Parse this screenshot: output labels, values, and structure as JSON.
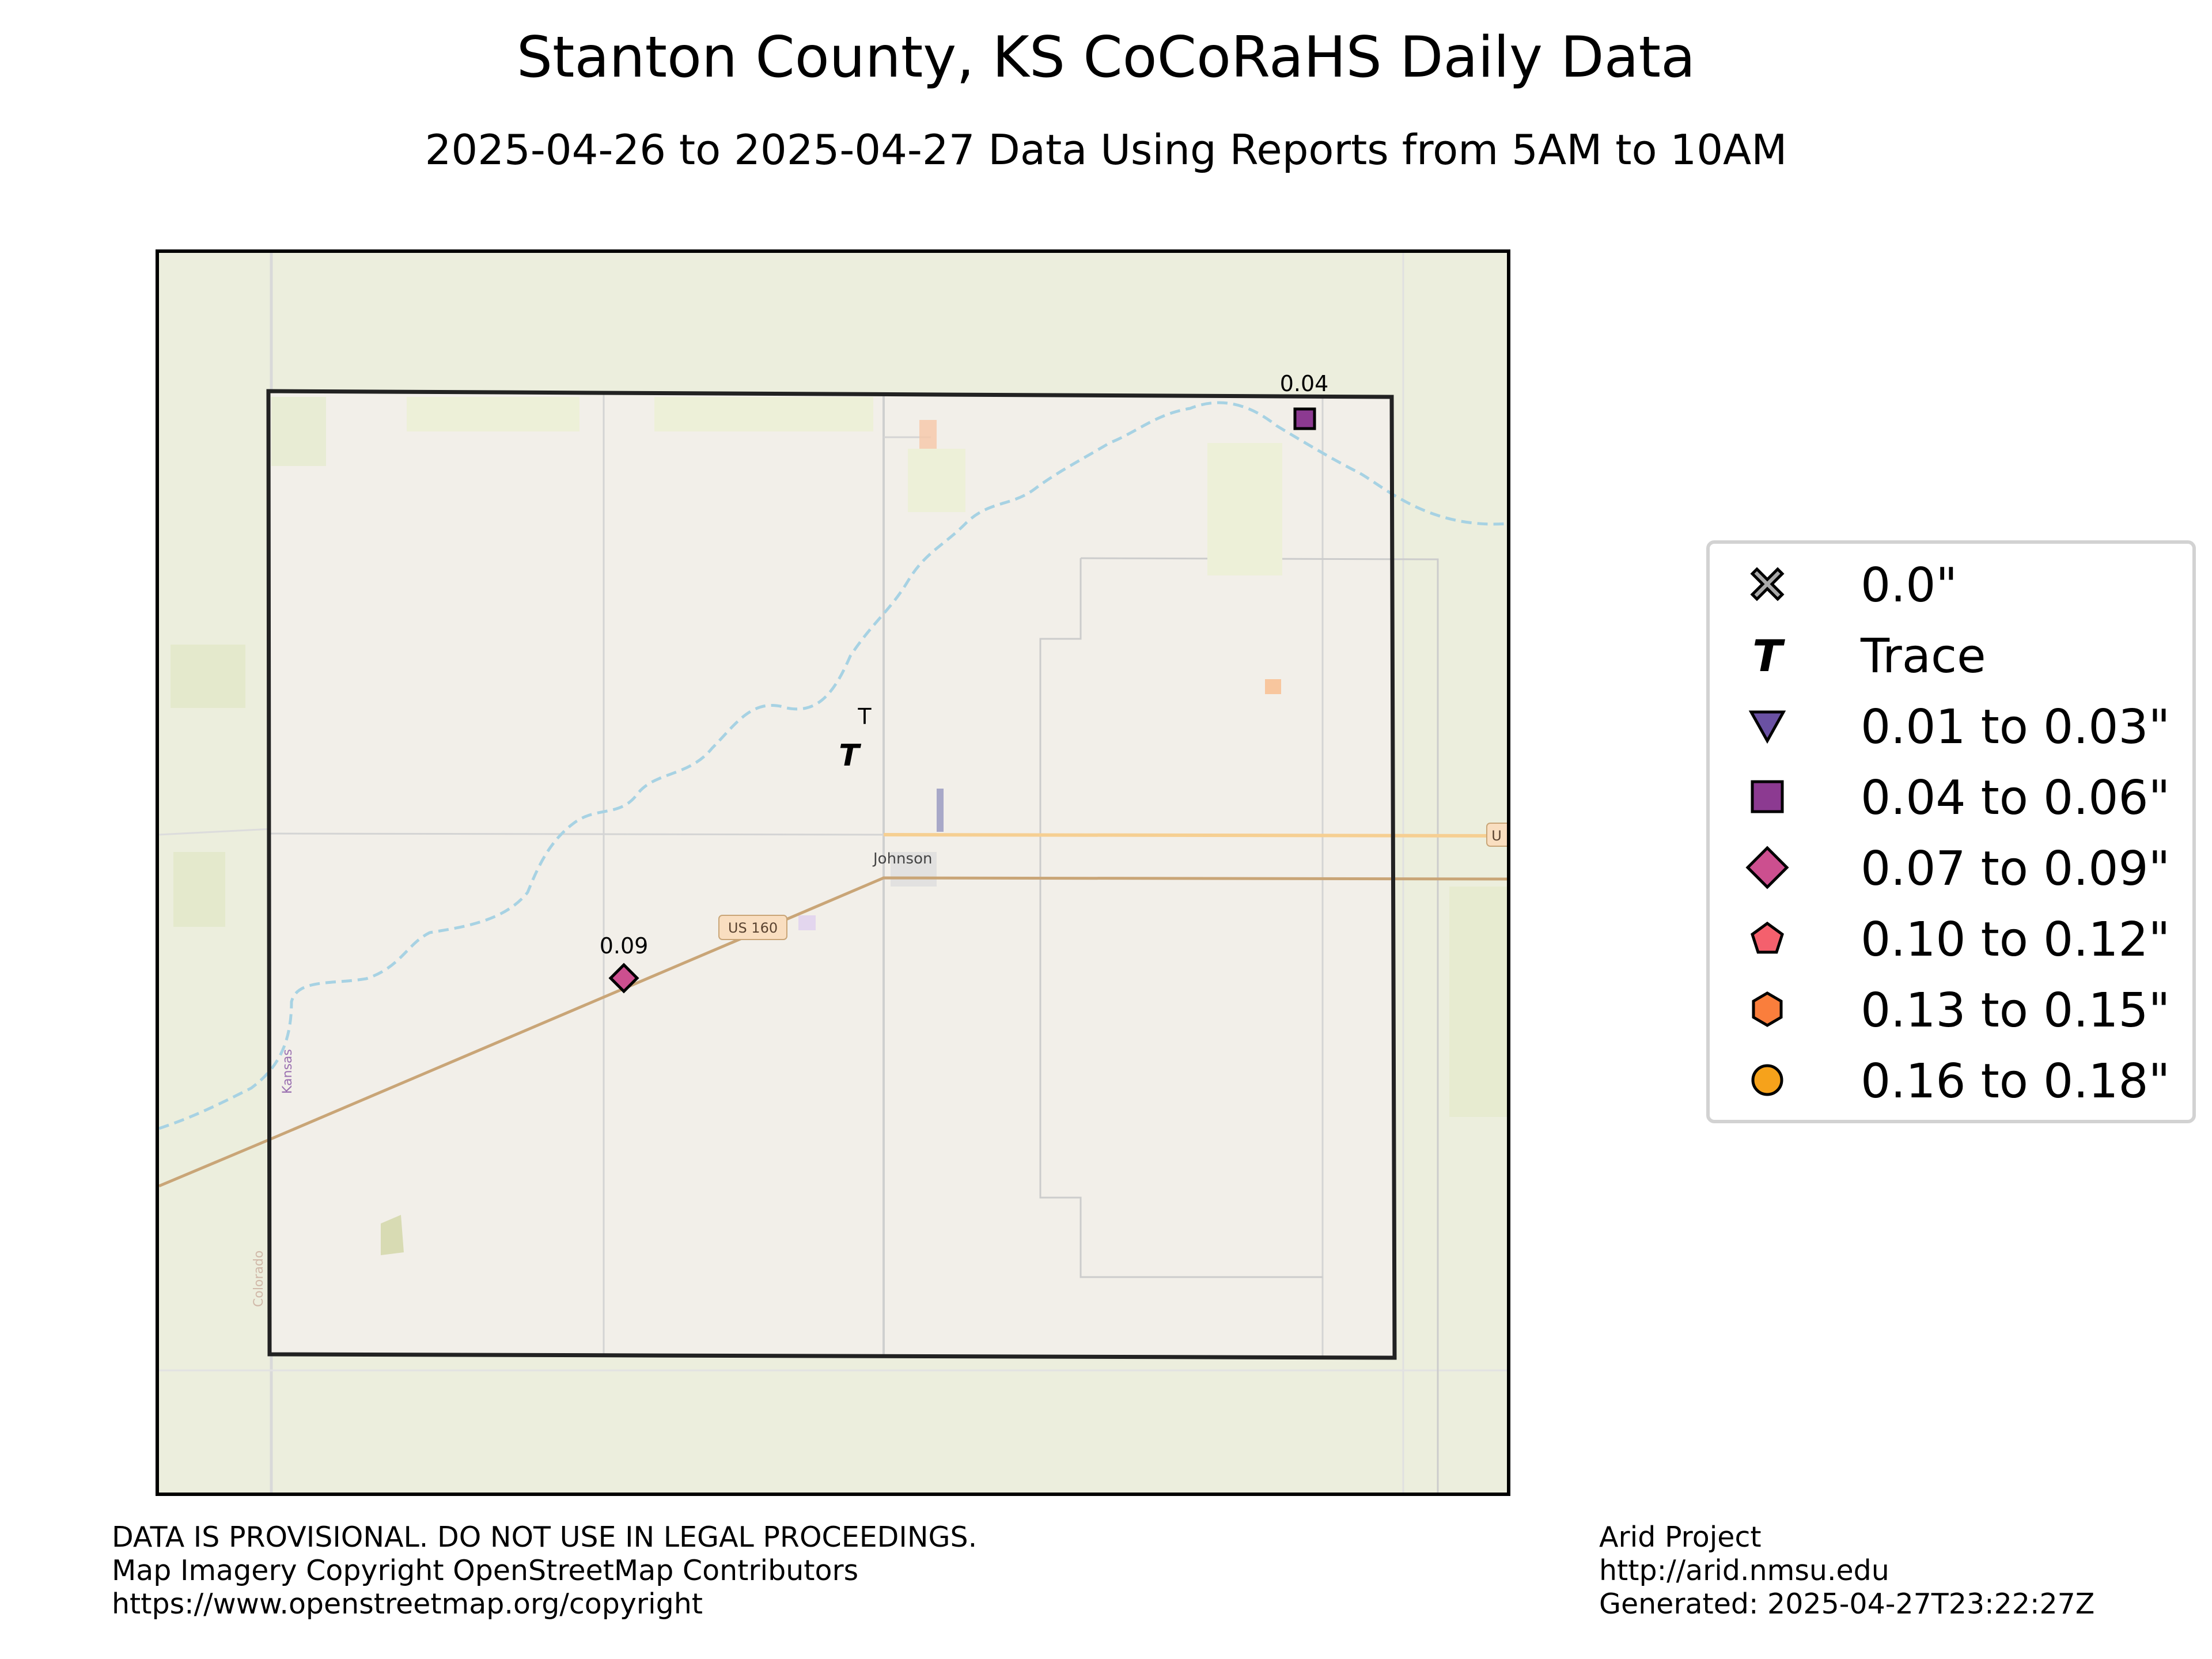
{
  "title": "Stanton County, KS CoCoRaHS Daily Data",
  "subtitle": "2025-04-26 to 2025-04-27 Data Using Reports from 5AM to 10AM",
  "map": {
    "place_label": "Johnson",
    "road_shield": "US 160",
    "state_label": "Kansas",
    "state_label_west": "Colorado",
    "road_shield_east": "U",
    "colors": {
      "background": "#eceedd",
      "county_fill": "#f2efe9",
      "river": "#a7d2e3",
      "highway": "#c9a577",
      "highway_east": "#f6cf92",
      "section_lines": "#cfcfcf"
    },
    "stations": [
      {
        "label": "0.04",
        "category": "0.04 to 0.06\"",
        "symbol": "square"
      },
      {
        "label": "0.09",
        "category": "0.07 to 0.09\"",
        "symbol": "diamond"
      },
      {
        "label": "T",
        "category": "Trace",
        "symbol": "T"
      }
    ]
  },
  "legend": {
    "items": [
      {
        "label": "0.0\"",
        "symbol": "x-cross-icon",
        "color": "#aaaaaa"
      },
      {
        "label": "Trace",
        "symbol": "t-icon",
        "color": "#000000"
      },
      {
        "label": "0.01 to 0.03\"",
        "symbol": "triangle-down-icon",
        "color": "#6a51a3"
      },
      {
        "label": "0.04 to 0.06\"",
        "symbol": "square-icon",
        "color": "#8c3a91"
      },
      {
        "label": "0.07 to 0.09\"",
        "symbol": "diamond-icon",
        "color": "#cc4f8f"
      },
      {
        "label": "0.10 to 0.12\"",
        "symbol": "pentagon-icon",
        "color": "#f4606d"
      },
      {
        "label": "0.13 to 0.15\"",
        "symbol": "hexagon-icon",
        "color": "#fa7e3c"
      },
      {
        "label": "0.16 to 0.18\"",
        "symbol": "circle-icon",
        "color": "#f6a21b"
      }
    ]
  },
  "footer": {
    "disclaimer": "DATA IS PROVISIONAL. DO NOT USE IN LEGAL PROCEEDINGS.",
    "imagery": "Map Imagery Copyright OpenStreetMap Contributors",
    "copyright_url": "https://www.openstreetmap.org/copyright",
    "project": "Arid Project",
    "project_url": "http://arid.nmsu.edu",
    "generated": "Generated: 2025-04-27T23:22:27Z"
  }
}
